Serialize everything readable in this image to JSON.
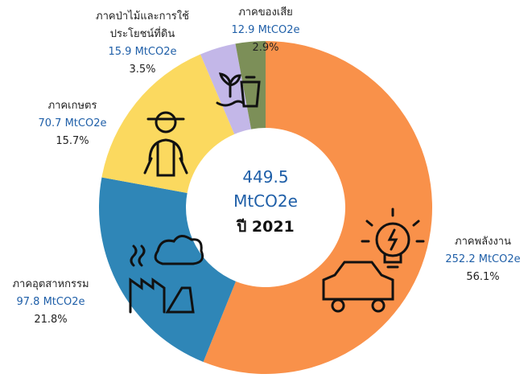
{
  "chart_data": {
    "type": "donut",
    "categories": [
      "ภาคพลังงาน",
      "ภาคอุตสาหกรรม",
      "ภาคเกษตร",
      "ภาคป่าไม้และการใช้ประโยชน์ที่ดิน",
      "ภาคของเสีย"
    ],
    "values": [
      56.1,
      21.8,
      15.7,
      3.5,
      2.9
    ],
    "value_labels": [
      "56.1%",
      "21.8%",
      "15.7%",
      "3.5%",
      "2.9%"
    ],
    "emissions": [
      252.2,
      97.8,
      70.7,
      15.9,
      12.9
    ],
    "emission_labels": [
      "252.2 MtCO2e",
      "97.8 MtCO2e",
      "70.7 MtCO2e",
      "15.9 MtCO2e",
      "12.9 MtCO2e"
    ],
    "colors": [
      "#f9914a",
      "#2f86b7",
      "#fbd95f",
      "#c3b7e8",
      "#7c8f58"
    ],
    "total": 449.5,
    "total_unit": "MtCO2e",
    "year_label": "ปี 2021"
  }
}
